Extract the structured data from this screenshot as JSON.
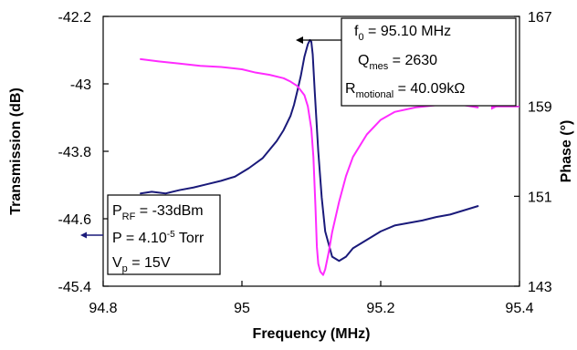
{
  "chart_data": {
    "type": "line",
    "xlabel": "Frequency (MHz)",
    "ylabel_left": "Transmission (dB)",
    "ylabel_right": "Phase (°)",
    "xlim": [
      94.8,
      95.4
    ],
    "ylim_left": [
      -45.4,
      -42.2
    ],
    "ylim_right": [
      143,
      167
    ],
    "x_tick_labels": [
      "94.8",
      "95",
      "95.2",
      "95.4"
    ],
    "y_left_tick_labels": [
      "-42.2",
      "-43",
      "-43.8",
      "-44.6",
      "-45.4"
    ],
    "y_right_tick_labels": [
      "167",
      "159",
      "151",
      "143"
    ],
    "grid": false,
    "legend": "none",
    "series": [
      {
        "axis": "left",
        "color": "#1a1a7a",
        "x": [
          94.854,
          94.87,
          94.89,
          94.91,
          94.93,
          94.95,
          94.97,
          94.99,
          95.01,
          95.03,
          95.04,
          95.05,
          95.06,
          95.07,
          95.075,
          95.08,
          95.085,
          95.09,
          95.095,
          95.098,
          95.1,
          95.102,
          95.105,
          95.11,
          95.115,
          95.12,
          95.13,
          95.14,
          95.15,
          95.16,
          95.18,
          95.2,
          95.22,
          95.24,
          95.26,
          95.28,
          95.3,
          95.32,
          95.34
        ],
        "values": [
          -44.3,
          -44.28,
          -44.3,
          -44.26,
          -44.23,
          -44.19,
          -44.15,
          -44.1,
          -44.0,
          -43.88,
          -43.78,
          -43.68,
          -43.55,
          -43.38,
          -43.25,
          -43.08,
          -42.9,
          -42.68,
          -42.53,
          -42.48,
          -42.5,
          -42.65,
          -43.1,
          -43.8,
          -44.35,
          -44.75,
          -45.05,
          -45.1,
          -45.05,
          -44.95,
          -44.85,
          -44.75,
          -44.68,
          -44.65,
          -44.62,
          -44.58,
          -44.55,
          -44.5,
          -44.45
        ]
      },
      {
        "axis": "right",
        "color": "#ff2bff",
        "x": [
          94.854,
          94.88,
          94.91,
          94.94,
          94.97,
          95.0,
          95.02,
          95.04,
          95.06,
          95.07,
          95.08,
          95.09,
          95.095,
          95.1,
          95.103,
          95.106,
          95.108,
          95.11,
          95.113,
          95.117,
          95.12,
          95.125,
          95.13,
          95.14,
          95.15,
          95.16,
          95.18,
          95.2,
          95.22,
          95.25,
          95.28,
          95.3,
          95.32,
          95.34
        ],
        "values": [
          163.2,
          163.0,
          162.8,
          162.6,
          162.5,
          162.3,
          162.0,
          161.8,
          161.5,
          161.2,
          160.8,
          160.0,
          159.0,
          157.0,
          154.5,
          150.0,
          146.5,
          145.0,
          144.3,
          144.0,
          144.5,
          146.0,
          147.8,
          150.5,
          152.8,
          154.5,
          156.5,
          157.8,
          158.5,
          158.9,
          159.1,
          159.3,
          159.1,
          158.9
        ]
      }
    ],
    "annotations": {
      "resonance_box": [
        {
          "main": "f",
          "sub": "0",
          "rest": " = 95.10 MHz"
        },
        {
          "main": "Q",
          "sub": "mes",
          "rest": " = 2630"
        },
        {
          "main": "R",
          "sub": "motional",
          "rest": " = 40.09kΩ"
        }
      ],
      "conditions_box": {
        "prf": {
          "main": "P",
          "sub": "RF",
          "rest": " = -33dBm"
        },
        "pressure": {
          "main": "P = 4.10",
          "sup": "-5",
          "rest": " Torr"
        },
        "vp": {
          "main": "V",
          "sub": "p",
          "rest": " = 15V"
        }
      }
    }
  }
}
